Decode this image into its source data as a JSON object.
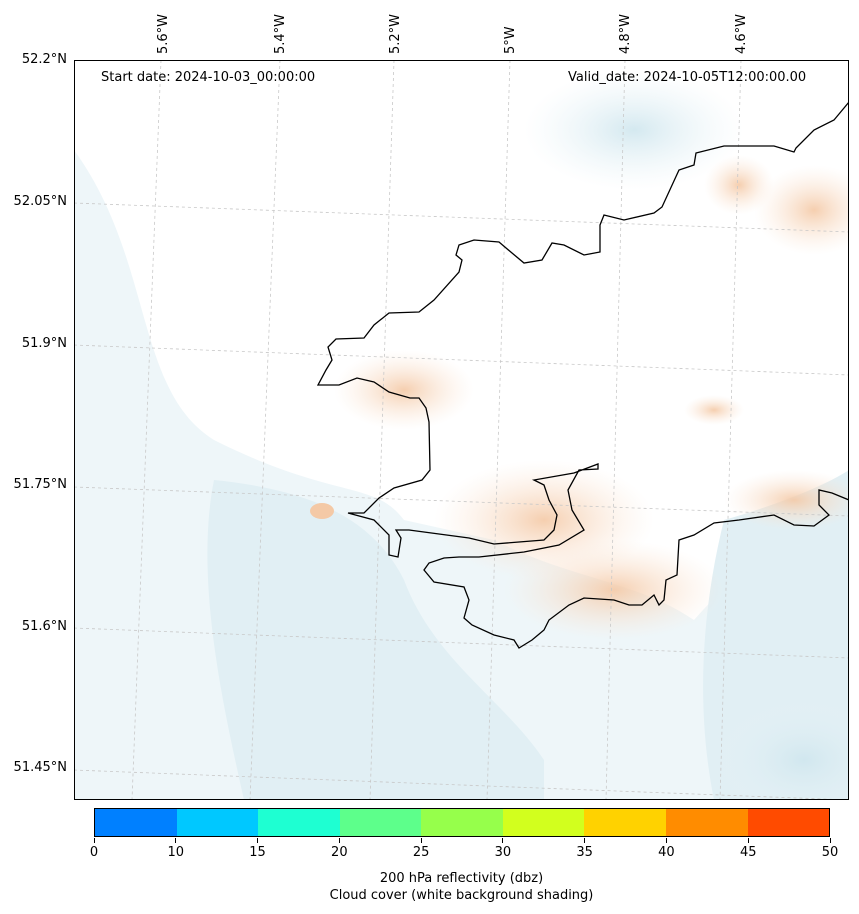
{
  "map": {
    "start_date": "Start date: 2024-10-03_00:00:00",
    "valid_date": "Valid_date: 2024-10-05T12:00:00.00",
    "lon_labels": [
      "5.6°W",
      "5.4°W",
      "5.2°W",
      "5°W",
      "4.8°W",
      "4.6°W"
    ],
    "lat_labels": [
      "52.2°N",
      "52.05°N",
      "51.9°N",
      "51.75°N",
      "51.6°N",
      "51.45°N"
    ],
    "colors": {
      "coast": "#000000",
      "sea_cloud": "#d7eaf1",
      "land_warm": "#f6d2b4",
      "gridline": "#bfbfbf"
    }
  },
  "colorbar": {
    "ticks": [
      "0",
      "10",
      "15",
      "20",
      "25",
      "30",
      "35",
      "40",
      "45",
      "50"
    ],
    "colors": [
      "#0080ff",
      "#00c8ff",
      "#1effd2",
      "#5dff8b",
      "#96ff4b",
      "#d2ff1e",
      "#ffd200",
      "#ff8c00",
      "#ff4b00"
    ],
    "label_line1": "200 hPa reflectivity (dbz)",
    "label_line2": "Cloud cover (white background shading)"
  }
}
